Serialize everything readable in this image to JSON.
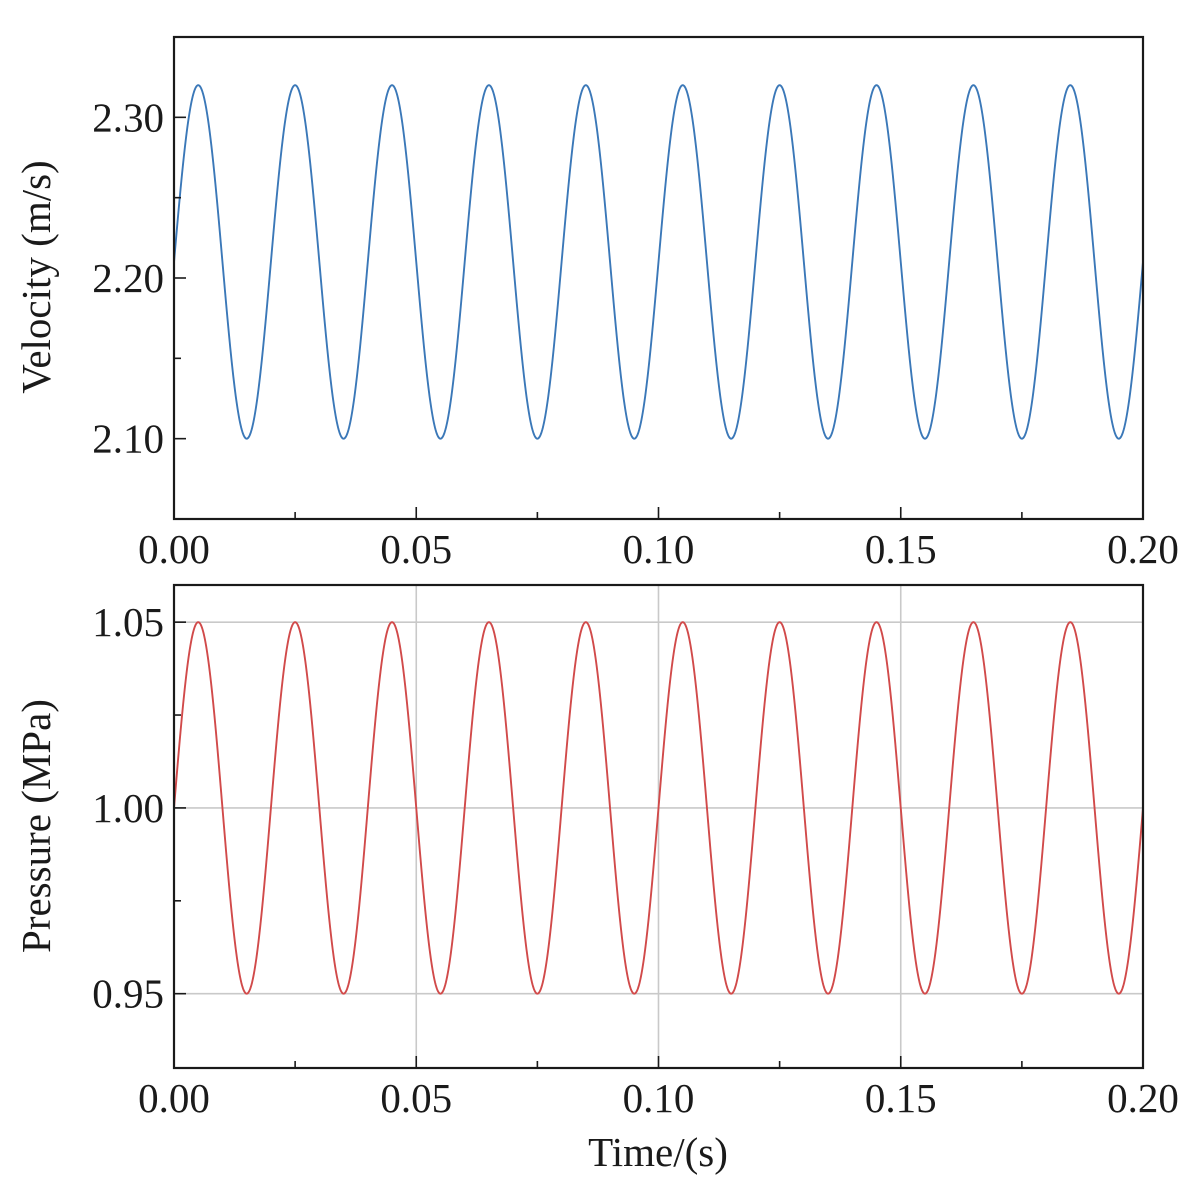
{
  "chart_data": [
    {
      "type": "line",
      "ylabel": "Velocity (m/s)",
      "xlabel": "",
      "xlim": [
        0,
        0.2
      ],
      "ylim": [
        2.05,
        2.35
      ],
      "xticks": [
        "0.00",
        "0.05",
        "0.10",
        "0.15",
        "0.20"
      ],
      "yticks": [
        "2.10",
        "2.20",
        "2.30"
      ],
      "x_minor_ticks": [
        0.025,
        0.075,
        0.125,
        0.175
      ],
      "y_minor_ticks": [
        2.15,
        2.25
      ],
      "grid": false,
      "series": [
        {
          "color": "#3b78b8",
          "waveform": "sine",
          "offset": 2.21,
          "amplitude": 0.11,
          "period": 0.02,
          "x_start": 0,
          "x_end": 0.2
        }
      ]
    },
    {
      "type": "line",
      "ylabel": "Pressure (MPa)",
      "xlabel": "Time/(s)",
      "xlim": [
        0,
        0.2
      ],
      "ylim": [
        0.93,
        1.06
      ],
      "xticks": [
        "0.00",
        "0.05",
        "0.10",
        "0.15",
        "0.20"
      ],
      "yticks": [
        "0.95",
        "1.00",
        "1.05"
      ],
      "x_minor_ticks": [
        0.025,
        0.075,
        0.125,
        0.175
      ],
      "y_minor_ticks": [
        0.975,
        1.025
      ],
      "grid": true,
      "series": [
        {
          "color": "#d14a4a",
          "waveform": "sine",
          "offset": 1.0,
          "amplitude": 0.05,
          "period": 0.02,
          "x_start": 0,
          "x_end": 0.2
        }
      ]
    }
  ]
}
